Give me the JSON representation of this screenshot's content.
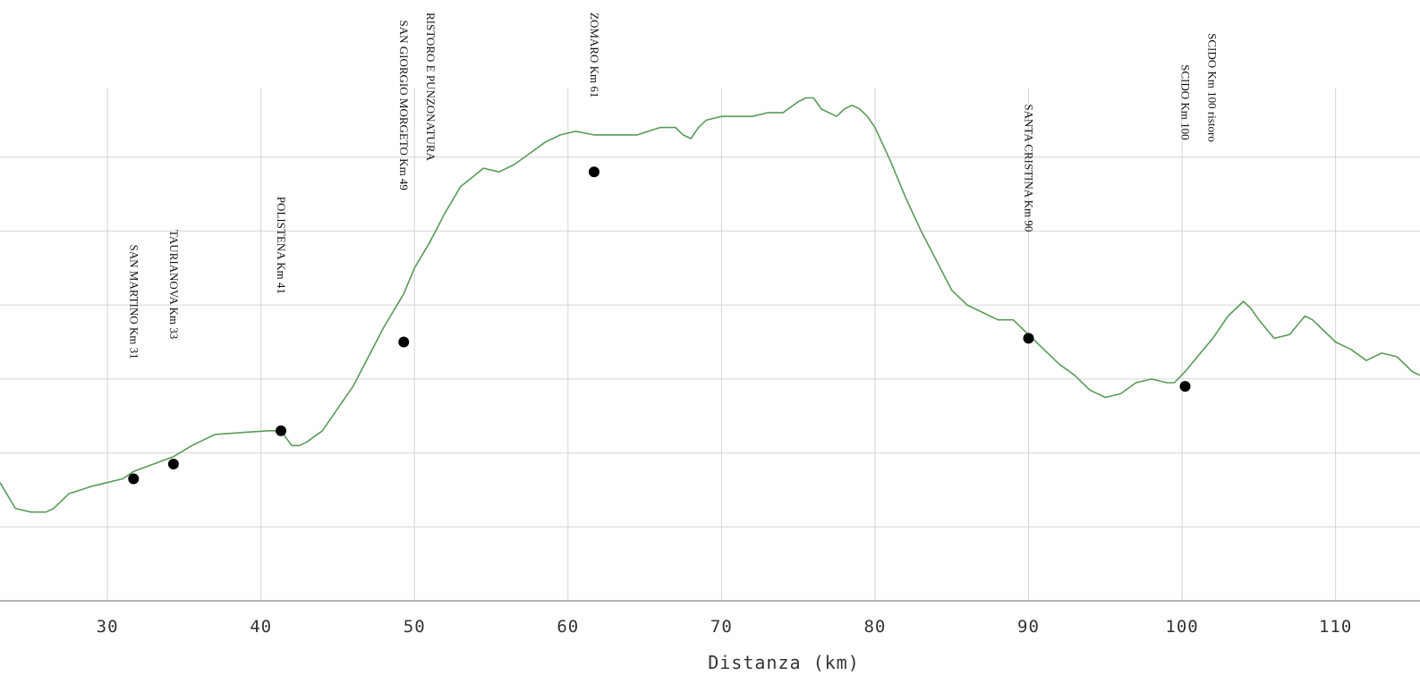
{
  "chart_data": {
    "type": "line",
    "title": "",
    "xlabel": "Distanza (km)",
    "ylabel": "",
    "xlim": [
      23,
      115.5
    ],
    "ylim": [
      0,
      7
    ],
    "grid": true,
    "x_ticks": [
      30,
      40,
      50,
      60,
      70,
      80,
      90,
      100,
      110
    ],
    "y_gridlines": [
      1,
      2,
      3,
      4,
      5,
      6
    ],
    "line_color": "#5a9a5a",
    "marker_color": "#000000",
    "grid_color": "#d4d4d4",
    "series": [
      {
        "x": [
          23,
          24,
          25,
          26,
          26.5,
          27.5,
          29,
          31,
          31.7,
          33,
          34.3,
          35.5,
          37,
          39,
          40.5,
          41.3,
          42,
          42.5,
          43,
          44,
          45,
          46,
          47,
          48,
          49.3,
          50,
          51,
          52,
          53,
          54.5,
          55.5,
          56.5,
          57.5,
          58.5,
          59.5,
          60.5,
          61.7,
          63,
          64.5,
          66,
          67,
          67.5,
          68,
          68.5,
          69,
          70,
          71,
          72,
          73,
          74,
          75,
          75.5,
          76,
          76.5,
          77,
          77.5,
          78,
          78.5,
          79,
          79.5,
          80,
          81,
          82,
          83,
          84,
          85,
          86,
          87,
          88,
          89,
          90,
          91,
          92,
          93,
          94,
          95,
          96,
          97,
          98,
          99,
          99.5,
          100.2,
          101,
          102,
          103,
          104,
          104.5,
          105,
          106,
          107,
          108,
          108.5,
          109,
          110,
          111,
          112,
          113,
          114,
          115,
          115.5
        ],
        "y": [
          1.6,
          1.25,
          1.2,
          1.2,
          1.25,
          1.45,
          1.55,
          1.65,
          1.75,
          1.85,
          1.95,
          2.1,
          2.25,
          2.28,
          2.3,
          2.3,
          2.1,
          2.1,
          2.15,
          2.3,
          2.6,
          2.9,
          3.3,
          3.7,
          4.15,
          4.5,
          4.85,
          5.25,
          5.6,
          5.85,
          5.8,
          5.9,
          6.05,
          6.2,
          6.3,
          6.35,
          6.3,
          6.3,
          6.3,
          6.4,
          6.4,
          6.3,
          6.25,
          6.4,
          6.5,
          6.55,
          6.55,
          6.55,
          6.6,
          6.6,
          6.75,
          6.8,
          6.8,
          6.65,
          6.6,
          6.55,
          6.65,
          6.7,
          6.65,
          6.55,
          6.4,
          5.95,
          5.45,
          5.0,
          4.6,
          4.2,
          4.0,
          3.9,
          3.8,
          3.8,
          3.6,
          3.4,
          3.2,
          3.05,
          2.85,
          2.75,
          2.8,
          2.95,
          3.0,
          2.95,
          2.95,
          3.1,
          3.3,
          3.55,
          3.85,
          4.05,
          3.95,
          3.8,
          3.55,
          3.6,
          3.85,
          3.8,
          3.7,
          3.5,
          3.4,
          3.25,
          3.35,
          3.3,
          3.1,
          3.05
        ]
      }
    ],
    "waypoints": [
      {
        "x": 31.7,
        "y": 1.65,
        "labels": [
          "SAN MARTINO   Km 31"
        ]
      },
      {
        "x": 34.3,
        "y": 1.85,
        "labels": [
          "TAURIANOVA   Km 33"
        ]
      },
      {
        "x": 41.3,
        "y": 2.3,
        "labels": [
          "POLISTENA   Km 41"
        ]
      },
      {
        "x": 49.3,
        "y": 3.5,
        "labels": [
          "SAN GIORGIO MORGETO   Km 49",
          "RISTORO E PUNZONATURA"
        ]
      },
      {
        "x": 61.7,
        "y": 5.8,
        "labels": [
          "ZOMARO   Km 61"
        ]
      },
      {
        "x": 90,
        "y": 3.55,
        "labels": [
          "SANTA CRISTINA   Km 90"
        ]
      },
      {
        "x": 100.2,
        "y": 2.9,
        "labels": [
          "SCIDO   Km 100",
          "SCIDO   Km 100 ristoro"
        ]
      }
    ]
  }
}
